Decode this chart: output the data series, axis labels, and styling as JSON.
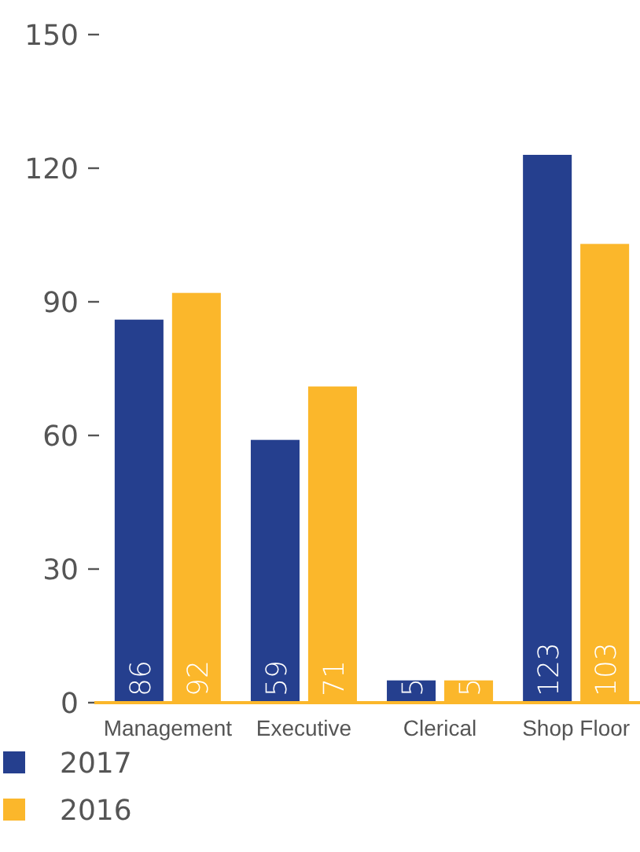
{
  "chart_data": {
    "type": "bar",
    "categories": [
      "Management",
      "Executive",
      "Clerical",
      "Shop Floor"
    ],
    "series": [
      {
        "name": "2017",
        "color": "#253f8e",
        "values": [
          86,
          59,
          5,
          123
        ]
      },
      {
        "name": "2016",
        "color": "#fbb72b",
        "values": [
          92,
          71,
          5,
          103
        ]
      }
    ],
    "ylim": [
      0,
      150
    ],
    "yticks": [
      0,
      30,
      60,
      90,
      120,
      150
    ],
    "grid": false,
    "data_labels": true,
    "legend": "bottom left"
  }
}
